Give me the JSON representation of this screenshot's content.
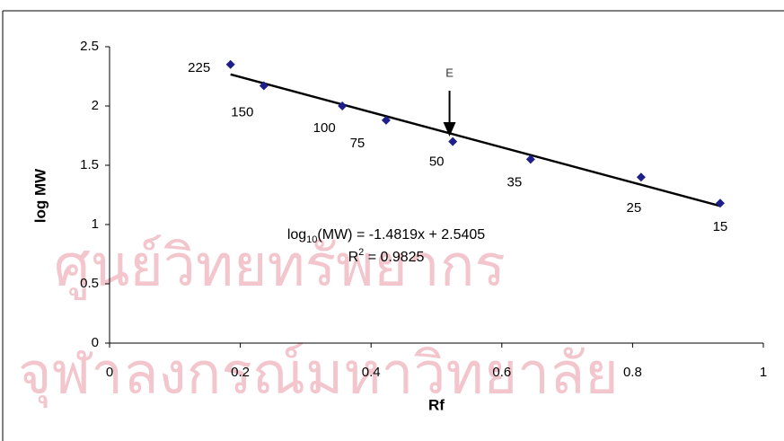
{
  "chart_data": {
    "type": "scatter",
    "watermark": [
      "ศูนย์วิทยทรัพยากร",
      "จุฬาลงกรณ์มหาวิทยาลัย"
    ],
    "x_label": "Rf",
    "y_label": "log MW",
    "x": [
      0.185,
      0.236,
      0.356,
      0.423,
      0.525,
      0.644,
      0.813,
      0.934
    ],
    "values": [
      2.35,
      2.17,
      2.0,
      1.88,
      1.7,
      1.55,
      1.4,
      1.18
    ],
    "labels": [
      "225",
      "150",
      "100",
      "75",
      "50",
      "35",
      "25",
      "15"
    ],
    "color": "#1f1f8c",
    "trendline": {
      "slope": -1.4819,
      "intercept": 2.5405,
      "color": "#000000"
    },
    "equation": [
      "log",
      "10",
      "(MW) = -1.4819x + 2.5405"
    ],
    "r_squared": [
      "R",
      "2",
      " = 0.9825"
    ],
    "annotation": {
      "text": "E",
      "x": 0.52
    },
    "xlim": [
      0,
      1
    ],
    "ylim": [
      0,
      2.5
    ],
    "xticks": [
      0,
      0.2,
      0.4,
      0.6,
      0.8,
      1
    ],
    "yticks": [
      0,
      0.5,
      1,
      1.5,
      2,
      2.5
    ]
  }
}
